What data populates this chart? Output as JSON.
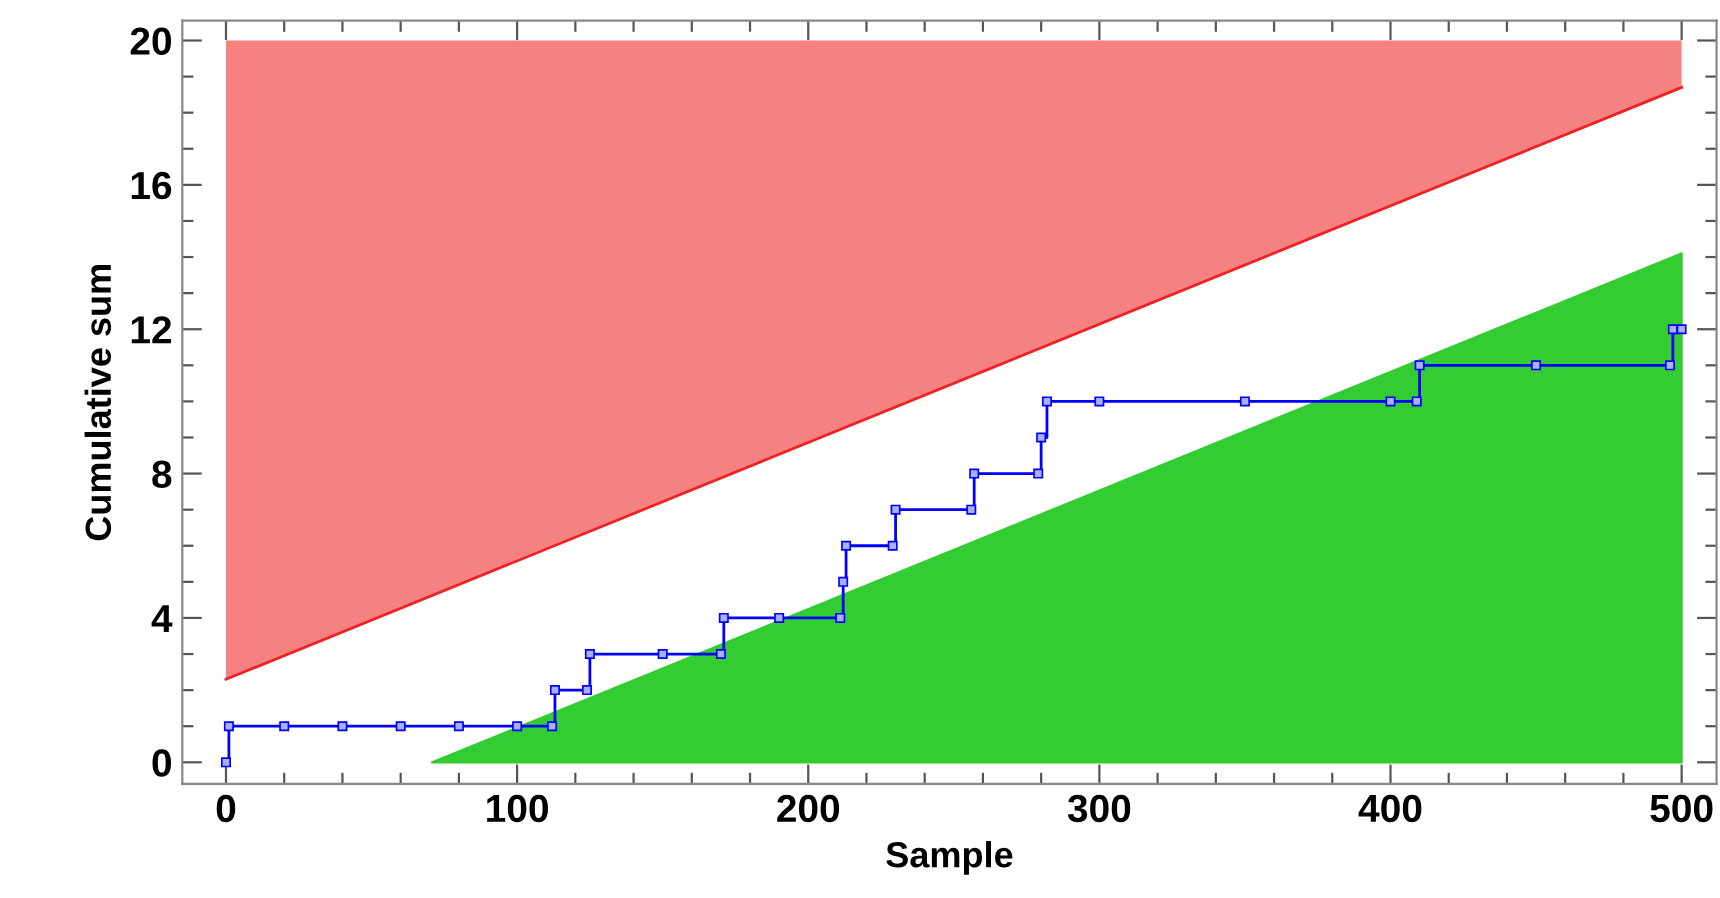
{
  "chart_data": {
    "type": "step",
    "xlabel": "Sample",
    "ylabel": "Cumulative sum",
    "xlim": [
      -15,
      512
    ],
    "ylim": [
      -0.6,
      20.55
    ],
    "xticks": [
      0,
      100,
      200,
      300,
      400,
      500
    ],
    "yticks": [
      0,
      4,
      8,
      12,
      16,
      20
    ],
    "grid": false,
    "legend": false,
    "series": [
      {
        "type": "line",
        "color": "#ee2222",
        "x": [
          0,
          500
        ],
        "values": [
          2.3,
          18.7
        ],
        "lower": [
          2.3,
          18.7
        ],
        "upper": [
          20,
          20
        ]
      },
      {
        "type": "area",
        "color": "#33cc33",
        "x": [
          70.8,
          500
        ],
        "values": [
          0,
          14.1
        ]
      },
      {
        "color": "#0000ff",
        "marker": "square",
        "x": [
          0,
          1,
          20,
          40,
          60,
          80,
          100,
          112,
          113,
          124,
          125,
          150,
          170,
          171,
          190,
          211,
          212,
          213,
          229,
          230,
          256,
          257,
          279,
          280,
          282,
          300,
          350,
          400,
          409,
          410,
          450,
          496,
          497,
          500
        ],
        "values": [
          0,
          1,
          1,
          1,
          1,
          1,
          1,
          1,
          2,
          2,
          3,
          3,
          3,
          4,
          4,
          4,
          5,
          6,
          6,
          7,
          7,
          8,
          8,
          9,
          10,
          10,
          10,
          10,
          10,
          11,
          11,
          11,
          12,
          12
        ]
      }
    ]
  }
}
